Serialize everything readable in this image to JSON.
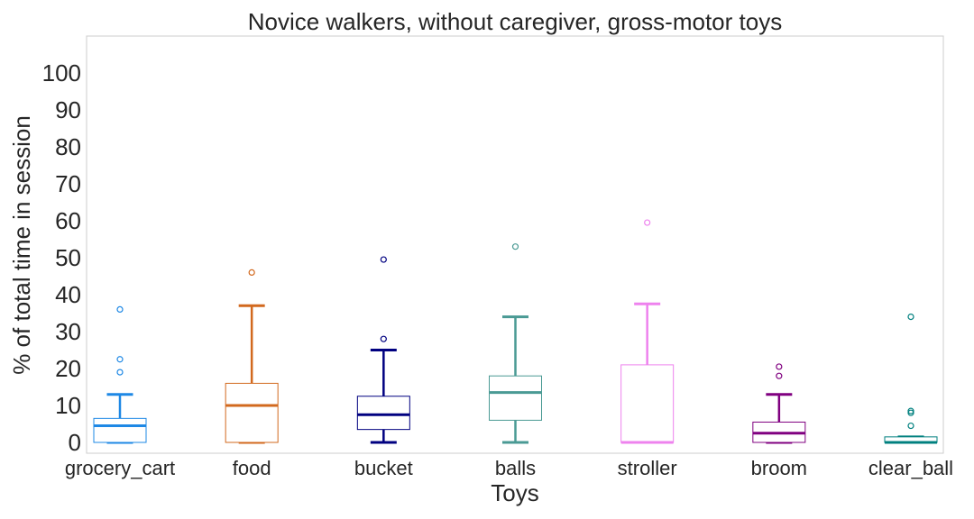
{
  "chart_data": {
    "type": "box",
    "title": "Novice walkers, without caregiver, gross-motor toys",
    "xlabel": "Toys",
    "ylabel": "% of total time in session",
    "ylim": [
      -3,
      110
    ],
    "yticks": [
      0,
      10,
      20,
      30,
      40,
      50,
      60,
      70,
      80,
      90,
      100
    ],
    "grid": false,
    "categories": [
      "grocery_cart",
      "food",
      "bucket",
      "balls",
      "stroller",
      "broom",
      "clear_ball"
    ],
    "boxes": [
      {
        "category": "grocery_cart",
        "color": "#1e88e5",
        "whisker_low": 0,
        "q1": 0,
        "median": 4.5,
        "q3": 6.5,
        "whisker_high": 13,
        "outliers": [
          19,
          22.5,
          36
        ]
      },
      {
        "category": "food",
        "color": "#d2691e",
        "whisker_low": 0,
        "q1": 0,
        "median": 10,
        "q3": 16,
        "whisker_high": 37,
        "outliers": [
          46
        ]
      },
      {
        "category": "bucket",
        "color": "#000080",
        "whisker_low": 0,
        "q1": 3.5,
        "median": 7.5,
        "q3": 12.5,
        "whisker_high": 25,
        "outliers": [
          28,
          49.5
        ]
      },
      {
        "category": "balls",
        "color": "#4a9a94",
        "whisker_low": 0,
        "q1": 6,
        "median": 13.5,
        "q3": 18,
        "whisker_high": 34,
        "outliers": [
          53
        ]
      },
      {
        "category": "stroller",
        "color": "#ee82ee",
        "whisker_low": 0,
        "q1": 0,
        "median": 0,
        "q3": 21,
        "whisker_high": 37.5,
        "outliers": [
          59.5
        ]
      },
      {
        "category": "broom",
        "color": "#800080",
        "whisker_low": 0,
        "q1": 0,
        "median": 2.5,
        "q3": 5.5,
        "whisker_high": 13,
        "outliers": [
          18,
          20.5
        ]
      },
      {
        "category": "clear_ball",
        "color": "#00807f",
        "whisker_low": 0,
        "q1": 0,
        "median": 0,
        "q3": 1.5,
        "whisker_high": 1.5,
        "outliers": [
          4.5,
          8,
          8.5,
          34
        ]
      }
    ]
  }
}
